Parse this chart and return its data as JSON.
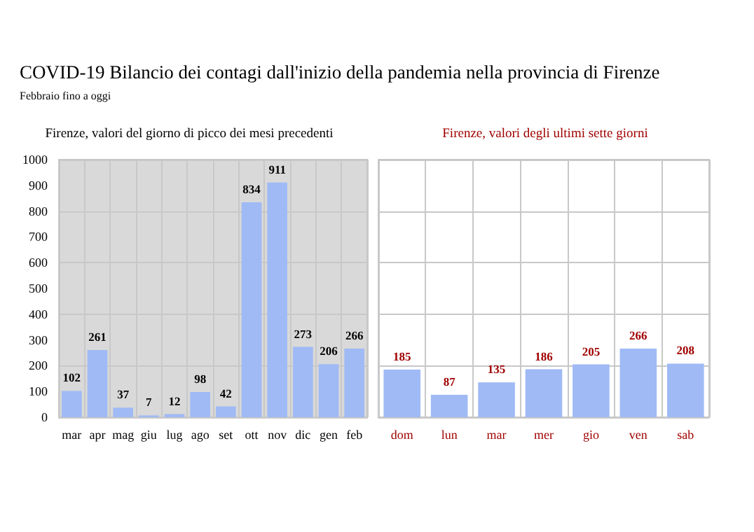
{
  "chart_data": [
    {
      "type": "bar",
      "title": "COVID-19 Bilancio dei contagi dall'inizio della pandemia nella provincia di Firenze",
      "subtitle": "Febbraio fino a oggi",
      "annotations": [
        "Firenze, valori del giorno di picco dei mesi precedenti"
      ],
      "categories": [
        "mar",
        "apr",
        "mag",
        "giu",
        "lug",
        "ago",
        "set",
        "ott",
        "nov",
        "dic",
        "gen",
        "feb"
      ],
      "values": [
        102,
        261,
        37,
        7,
        12,
        98,
        42,
        834,
        911,
        273,
        206,
        266
      ],
      "color": "#9fbaf5",
      "data_labels": true,
      "ylim": [
        0,
        1000
      ],
      "yticks": [
        0,
        100,
        200,
        300,
        400,
        500,
        600,
        700,
        800,
        900,
        1000
      ],
      "grid": true
    },
    {
      "type": "bar",
      "title": "Firenze, valori degli ultimi sette giorni",
      "categories": [
        "dom",
        "lun",
        "mar",
        "mer",
        "gio",
        "ven",
        "sab"
      ],
      "values": [
        185,
        87,
        135,
        186,
        205,
        266,
        208
      ],
      "color": "#9fbaf5",
      "data_labels": true,
      "ylim": [
        0,
        1000
      ],
      "yticks": [
        0,
        100,
        200,
        300,
        400,
        500,
        600,
        700,
        800,
        900,
        1000
      ],
      "tick_labels": "x",
      "grid": true
    }
  ]
}
